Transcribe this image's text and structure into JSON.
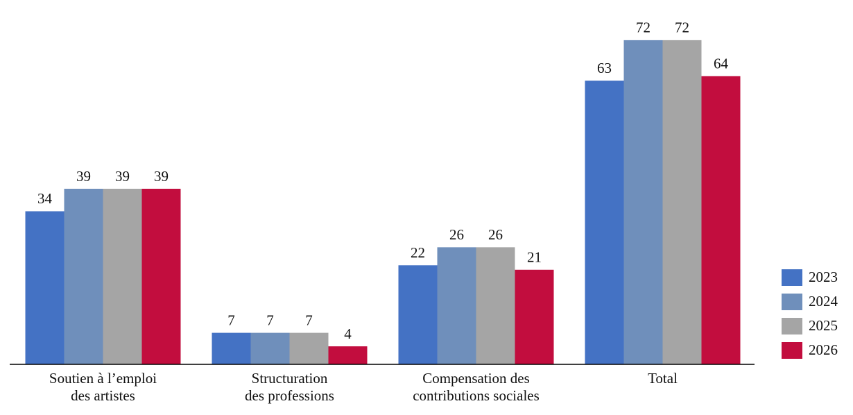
{
  "chart_data": {
    "type": "bar",
    "categories": [
      "Soutien à l’emploi\ndes artistes",
      "Structuration\ndes professions",
      "Compensation des\ncontributions sociales",
      "Total"
    ],
    "series": [
      {
        "name": "2023",
        "color": "#4472c4",
        "values": [
          34,
          7,
          22,
          63
        ]
      },
      {
        "name": "2024",
        "color": "#6f8fbb",
        "values": [
          39,
          7,
          26,
          72
        ]
      },
      {
        "name": "2025",
        "color": "#a5a5a5",
        "values": [
          39,
          7,
          26,
          72
        ]
      },
      {
        "name": "2026",
        "color": "#c20d3e",
        "values": [
          39,
          4,
          21,
          64
        ]
      }
    ],
    "ylim": [
      0,
      80
    ],
    "legend": "right"
  }
}
